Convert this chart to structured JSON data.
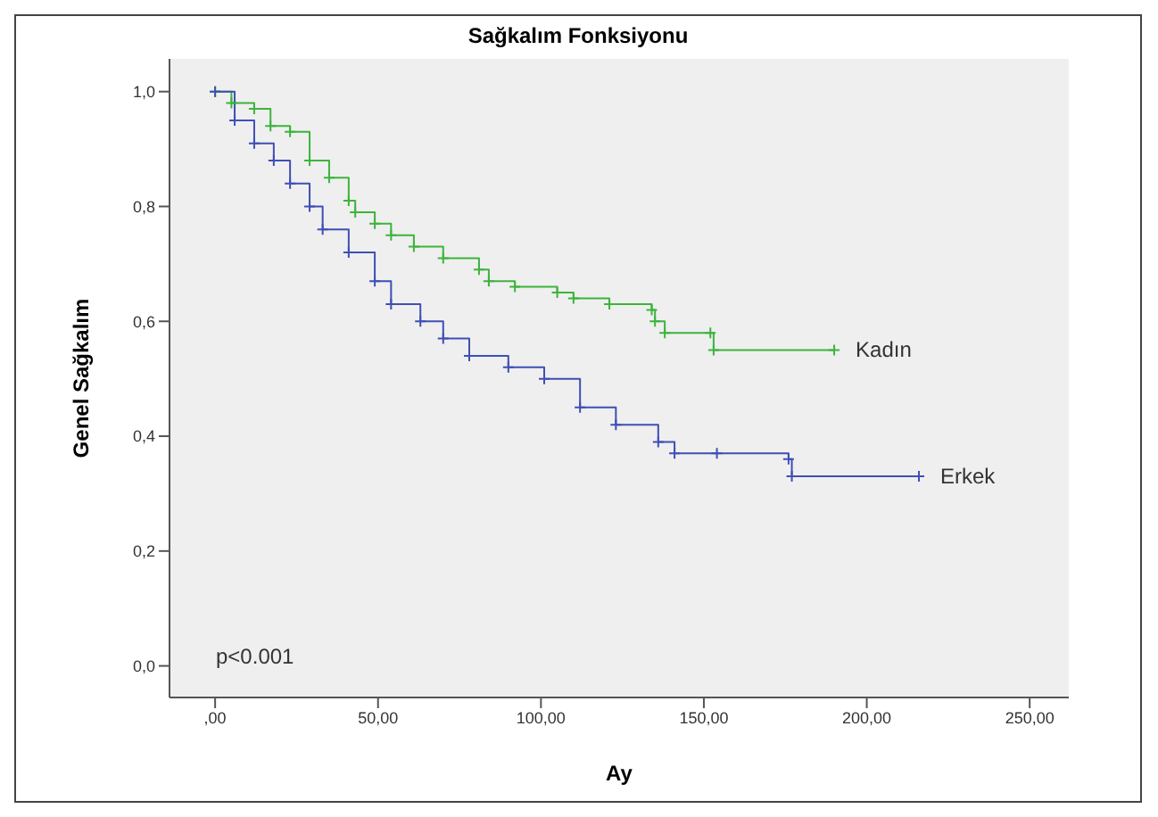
{
  "chart_data": {
    "type": "step",
    "title": "Sağkalım Fonksiyonu",
    "xlabel": "Ay",
    "ylabel": "Genel Sağkalım",
    "annotations": [
      "p<0.001"
    ],
    "marker": "cross",
    "line_style": "solid",
    "xlim": [
      -14,
      262
    ],
    "ylim": [
      -0.055,
      1.057
    ],
    "xticks": [
      {
        "value": 0,
        "label": ",00"
      },
      {
        "value": 50,
        "label": "50,00"
      },
      {
        "value": 100,
        "label": "100,00"
      },
      {
        "value": 150,
        "label": "150,00"
      },
      {
        "value": 200,
        "label": "200,00"
      },
      {
        "value": 250,
        "label": "250,00"
      }
    ],
    "yticks": [
      {
        "value": 0,
        "label": "0,0"
      },
      {
        "value": 0.2,
        "label": "0,2"
      },
      {
        "value": 0.4,
        "label": "0,4"
      },
      {
        "value": 0.6,
        "label": "0,6"
      },
      {
        "value": 0.8,
        "label": "0,8"
      },
      {
        "value": 1,
        "label": "1,0"
      }
    ],
    "series": [
      {
        "name": "Kadın",
        "color": "#3cb43c",
        "x": [
          0,
          5,
          12,
          17,
          23,
          29,
          35,
          41,
          43,
          49,
          54,
          61,
          70,
          81,
          84,
          92,
          105,
          110,
          121,
          134,
          135,
          138,
          152,
          153,
          190
        ],
        "values": [
          1.0,
          0.98,
          0.97,
          0.94,
          0.93,
          0.88,
          0.85,
          0.81,
          0.79,
          0.77,
          0.75,
          0.73,
          0.71,
          0.69,
          0.67,
          0.66,
          0.65,
          0.64,
          0.63,
          0.62,
          0.6,
          0.58,
          0.58,
          0.55,
          0.55
        ]
      },
      {
        "name": "Erkek",
        "color": "#3f4fb5",
        "x": [
          0,
          6,
          12,
          18,
          23,
          29,
          33,
          41,
          49,
          54,
          63,
          70,
          78,
          90,
          101,
          112,
          123,
          136,
          141,
          154,
          176,
          177,
          216
        ],
        "values": [
          1.0,
          0.95,
          0.91,
          0.88,
          0.84,
          0.8,
          0.76,
          0.72,
          0.67,
          0.63,
          0.6,
          0.57,
          0.54,
          0.52,
          0.5,
          0.45,
          0.42,
          0.39,
          0.37,
          0.37,
          0.36,
          0.33,
          0.33
        ]
      }
    ]
  }
}
